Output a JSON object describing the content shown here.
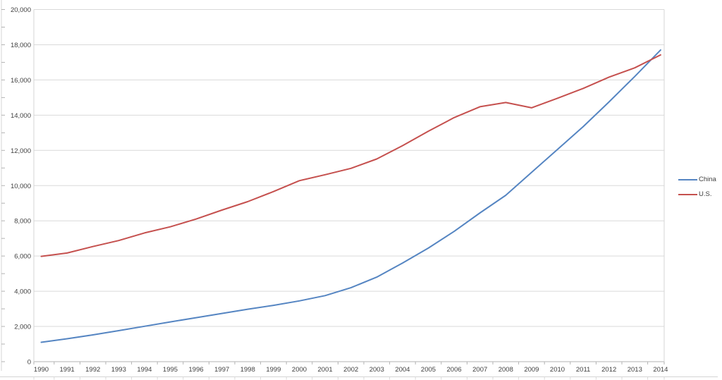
{
  "chart_data": {
    "type": "line",
    "title": "",
    "xlabel": "",
    "ylabel": "",
    "x": [
      1990,
      1991,
      1992,
      1993,
      1994,
      1995,
      1996,
      1997,
      1998,
      1999,
      2000,
      2001,
      2002,
      2003,
      2004,
      2005,
      2006,
      2007,
      2008,
      2009,
      2010,
      2011,
      2012,
      2013,
      2014
    ],
    "series": [
      {
        "name": "China",
        "color": "#5585c2",
        "values": [
          1100,
          1300,
          1520,
          1760,
          2010,
          2260,
          2500,
          2740,
          2980,
          3200,
          3450,
          3750,
          4200,
          4800,
          5600,
          6450,
          7400,
          8450,
          9450,
          10750,
          12050,
          13350,
          14750,
          16200,
          17700
        ]
      },
      {
        "name": "U.S.",
        "color": "#c5504e",
        "values": [
          5980,
          6170,
          6540,
          6880,
          7310,
          7660,
          8100,
          8610,
          9090,
          9660,
          10280,
          10620,
          10980,
          11510,
          12270,
          13090,
          13860,
          14480,
          14720,
          14420,
          14960,
          15520,
          16160,
          16690,
          17420
        ]
      }
    ],
    "ylim": [
      0,
      20000
    ],
    "y_tick_step": 2000,
    "grid": true,
    "legend_position": "right"
  },
  "axes": {
    "y_tick_labels": [
      "0",
      "2,000",
      "4,000",
      "6,000",
      "8,000",
      "10,000",
      "12,000",
      "14,000",
      "16,000",
      "18,000",
      "20,000"
    ],
    "grid_color": "#d9d9d9",
    "axis_color": "#b3b3b3",
    "border_color": "#d4d4d4",
    "label_color": "#3f3f3f"
  }
}
